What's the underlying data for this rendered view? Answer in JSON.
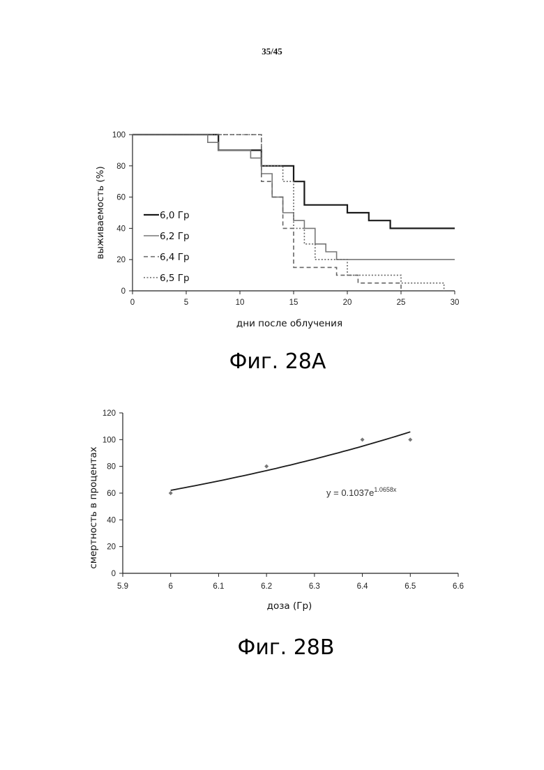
{
  "page_number": "35/45",
  "chart_data": [
    {
      "type": "line",
      "subtype": "step",
      "caption": "Фиг. 28A",
      "xlabel": "дни после облучения",
      "ylabel": "выживаемость (%)",
      "xlim": [
        0,
        30
      ],
      "ylim": [
        0,
        100
      ],
      "xticks": [
        0,
        5,
        10,
        15,
        20,
        25,
        30
      ],
      "yticks": [
        0,
        20,
        40,
        60,
        80,
        100
      ],
      "grid": false,
      "legend_position": "left",
      "series": [
        {
          "name": "6,0 Гр",
          "style": "solid-dark",
          "points": [
            [
              0,
              100
            ],
            [
              8,
              100
            ],
            [
              8,
              90
            ],
            [
              12,
              90
            ],
            [
              12,
              80
            ],
            [
              15,
              80
            ],
            [
              15,
              70
            ],
            [
              16,
              70
            ],
            [
              16,
              55
            ],
            [
              20,
              55
            ],
            [
              20,
              50
            ],
            [
              22,
              50
            ],
            [
              22,
              45
            ],
            [
              24,
              45
            ],
            [
              24,
              40
            ],
            [
              30,
              40
            ]
          ]
        },
        {
          "name": "6,2 Гр",
          "style": "solid-light",
          "points": [
            [
              0,
              100
            ],
            [
              7,
              100
            ],
            [
              7,
              95
            ],
            [
              8,
              95
            ],
            [
              8,
              90
            ],
            [
              11,
              90
            ],
            [
              11,
              85
            ],
            [
              12,
              85
            ],
            [
              12,
              75
            ],
            [
              13,
              75
            ],
            [
              13,
              60
            ],
            [
              14,
              60
            ],
            [
              14,
              50
            ],
            [
              15,
              50
            ],
            [
              15,
              45
            ],
            [
              16,
              45
            ],
            [
              16,
              40
            ],
            [
              17,
              40
            ],
            [
              17,
              30
            ],
            [
              18,
              30
            ],
            [
              18,
              25
            ],
            [
              19,
              25
            ],
            [
              19,
              20
            ],
            [
              30,
              20
            ]
          ]
        },
        {
          "name": "6,4 Гр",
          "style": "dashed",
          "points": [
            [
              0,
              100
            ],
            [
              12,
              100
            ],
            [
              12,
              70
            ],
            [
              13,
              70
            ],
            [
              13,
              60
            ],
            [
              14,
              60
            ],
            [
              14,
              40
            ],
            [
              15,
              40
            ],
            [
              15,
              15
            ],
            [
              19,
              15
            ],
            [
              19,
              10
            ],
            [
              21,
              10
            ],
            [
              21,
              5
            ],
            [
              25,
              5
            ],
            [
              25,
              0
            ]
          ]
        },
        {
          "name": "6,5 Гр",
          "style": "dotted",
          "points": [
            [
              0,
              100
            ],
            [
              12,
              100
            ],
            [
              12,
              80
            ],
            [
              14,
              80
            ],
            [
              14,
              70
            ],
            [
              15,
              70
            ],
            [
              15,
              40
            ],
            [
              16,
              40
            ],
            [
              16,
              30
            ],
            [
              17,
              30
            ],
            [
              17,
              20
            ],
            [
              20,
              20
            ],
            [
              20,
              10
            ],
            [
              25,
              10
            ],
            [
              25,
              5
            ],
            [
              29,
              5
            ],
            [
              29,
              0
            ]
          ]
        }
      ]
    },
    {
      "type": "scatter",
      "caption": "Фиг. 28B",
      "xlabel": "доза (Гр)",
      "ylabel": "смертность в процентах",
      "xlim": [
        5.9,
        6.6
      ],
      "ylim": [
        0,
        120
      ],
      "xticks": [
        "5.9",
        "6",
        "6.1",
        "6.2",
        "6.3",
        "6.4",
        "6.5",
        "6.6"
      ],
      "yticks": [
        "0",
        "20",
        "40",
        "60",
        "80",
        "100",
        "120"
      ],
      "grid": false,
      "points": [
        [
          6.0,
          60
        ],
        [
          6.2,
          80
        ],
        [
          6.4,
          100
        ],
        [
          6.5,
          100
        ]
      ],
      "trendline": {
        "type": "exponential",
        "a": 0.1037,
        "b": 1.0658,
        "x_range": [
          6.0,
          6.5
        ],
        "equation_base": "y = 0.1037e",
        "equation_exponent": "1.0658x"
      }
    }
  ]
}
